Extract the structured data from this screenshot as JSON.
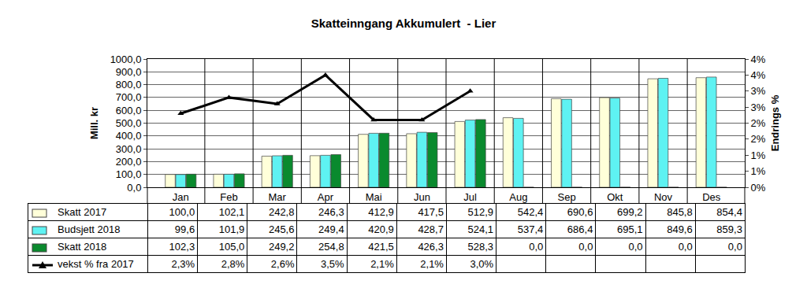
{
  "chart_data": {
    "type": "bar",
    "title": "Skatteinngang Akkumulert  - Lier",
    "y_label": "Mill. kr",
    "y2_label": "Endrings %",
    "categories": [
      "Jan",
      "Feb",
      "Mar",
      "Apr",
      "Mai",
      "Jun",
      "Jul",
      "Aug",
      "Sep",
      "Okt",
      "Nov",
      "Des"
    ],
    "series": [
      {
        "name": "Skatt 2017",
        "type": "bar",
        "color": "#FFFFD9",
        "values": [
          100.0,
          102.1,
          242.8,
          246.3,
          412.9,
          417.5,
          512.9,
          542.4,
          690.6,
          699.2,
          845.8,
          854.4
        ],
        "value_labels": [
          "100,0",
          "102,1",
          "242,8",
          "246,3",
          "412,9",
          "417,5",
          "512,9",
          "542,4",
          "690,6",
          "699,2",
          "845,8",
          "854,4"
        ]
      },
      {
        "name": "Budsjett 2018",
        "type": "bar",
        "color": "#5EF2F2",
        "values": [
          99.6,
          101.9,
          245.6,
          249.4,
          420.9,
          428.7,
          524.1,
          537.4,
          686.4,
          695.1,
          849.6,
          859.3
        ],
        "value_labels": [
          "99,6",
          "101,9",
          "245,6",
          "249,4",
          "420,9",
          "428,7",
          "524,1",
          "537,4",
          "686,4",
          "695,1",
          "849,6",
          "859,3"
        ]
      },
      {
        "name": "Skatt 2018",
        "type": "bar",
        "color": "#0A8A2E",
        "values": [
          102.3,
          105.0,
          249.2,
          254.8,
          421.5,
          426.3,
          528.3,
          0.0,
          0.0,
          0.0,
          0.0,
          0.0
        ],
        "value_labels": [
          "102,3",
          "105,0",
          "249,2",
          "254,8",
          "421,5",
          "426,3",
          "528,3",
          "0,0",
          "0,0",
          "0,0",
          "0,0",
          "0,0"
        ]
      },
      {
        "name": "vekst % fra 2017",
        "type": "line",
        "axis": "y2",
        "color": "#000000",
        "marker": "triangle-up",
        "values": [
          2.3,
          2.8,
          2.6,
          3.5,
          2.1,
          2.1,
          3.0,
          null,
          null,
          null,
          null,
          null
        ],
        "value_labels": [
          "2,3%",
          "2,8%",
          "2,6%",
          "3,5%",
          "2,1%",
          "2,1%",
          "3,0%",
          null,
          null,
          null,
          null,
          null
        ]
      }
    ],
    "ylim": [
      0,
      1000
    ],
    "yticks": [
      {
        "value": 0,
        "label": "0,0"
      },
      {
        "value": 100,
        "label": "100,0"
      },
      {
        "value": 200,
        "label": "200,0"
      },
      {
        "value": 300,
        "label": "300,0"
      },
      {
        "value": 400,
        "label": "400,0"
      },
      {
        "value": 500,
        "label": "500,0"
      },
      {
        "value": 600,
        "label": "600,0"
      },
      {
        "value": 700,
        "label": "700,0"
      },
      {
        "value": 800,
        "label": "800,0"
      },
      {
        "value": 900,
        "label": "900,0"
      },
      {
        "value": 1000,
        "label": "1000,0"
      }
    ],
    "y2lim": [
      0,
      4
    ],
    "y2ticks": [
      {
        "value": 0,
        "label": "0%"
      },
      {
        "value": 0.5,
        "label": "1%"
      },
      {
        "value": 1,
        "label": "1%"
      },
      {
        "value": 1.5,
        "label": "2%"
      },
      {
        "value": 2,
        "label": "2%"
      },
      {
        "value": 2.5,
        "label": "3%"
      },
      {
        "value": 3,
        "label": "3%"
      },
      {
        "value": 3.5,
        "label": "4%"
      },
      {
        "value": 4,
        "label": "4%"
      }
    ],
    "grid": true
  }
}
